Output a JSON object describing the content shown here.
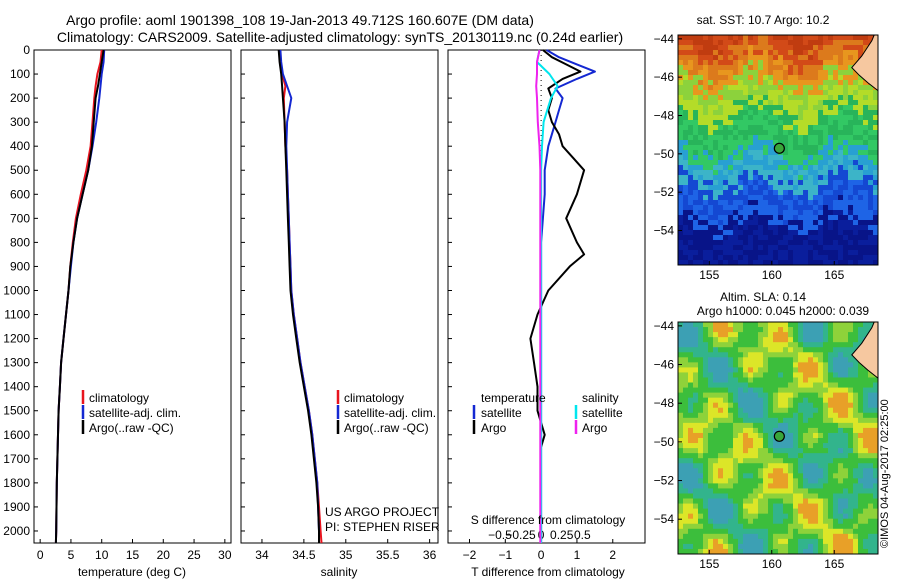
{
  "title_line1": "Argo profile: aoml 1901398_108 19-Jan-2013 49.712S 160.607E (DM data)",
  "title_line2": "Climatology: CARS2009. Satellite-adjusted climatology: synTS_20130119.nc (0.24d earlier)",
  "project_line1": "US ARGO PROJECT",
  "project_line2": "PI: STEPHEN RISER",
  "watermark": "©IMOS 04-Aug-2017 02:25:00",
  "colors": {
    "climatology": "#e8141e",
    "satellite": "#1428d2",
    "argo": "#000000",
    "sal_satellite": "#00e6ee",
    "sal_argo": "#ee22ee"
  },
  "chart_data": [
    {
      "type": "line",
      "id": "temperature",
      "xlabel": "temperature (deg C)",
      "ylabel": "",
      "xlim": [
        -1,
        31
      ],
      "ylim": [
        2050,
        0
      ],
      "xticks": [
        0,
        5,
        10,
        15,
        20,
        25,
        30
      ],
      "yticks": [
        0,
        100,
        200,
        300,
        400,
        500,
        600,
        700,
        800,
        900,
        1000,
        1100,
        1200,
        1300,
        1400,
        1500,
        1600,
        1700,
        1800,
        1900,
        2000
      ],
      "legend": [
        "climatology",
        "satellite-adj. clim.",
        "Argo(..raw -QC)"
      ],
      "series": [
        {
          "name": "climatology",
          "depth": [
            0,
            50,
            100,
            150,
            200,
            300,
            400,
            500,
            600,
            700,
            800,
            900,
            1000,
            1100,
            1200,
            1300,
            1400,
            1500,
            1600,
            1800,
            2000,
            2050
          ],
          "values": [
            10.0,
            9.8,
            9.3,
            9.0,
            8.8,
            8.5,
            8.2,
            7.5,
            6.6,
            5.8,
            5.3,
            4.9,
            4.6,
            4.2,
            3.8,
            3.4,
            3.2,
            3.0,
            2.9,
            2.7,
            2.6,
            2.55
          ]
        },
        {
          "name": "satellite-adj. clim.",
          "depth": [
            0,
            50,
            100,
            150,
            200,
            300,
            400,
            500,
            600,
            700,
            800,
            900,
            1000,
            1100,
            1200,
            1300,
            1400,
            1500,
            1600,
            1800,
            2000,
            2050
          ],
          "values": [
            10.4,
            10.3,
            10.0,
            9.8,
            9.6,
            9.1,
            8.5,
            7.8,
            6.9,
            6.0,
            5.4,
            5.0,
            4.6,
            4.2,
            3.8,
            3.4,
            3.2,
            3.0,
            2.9,
            2.7,
            2.6,
            2.55
          ]
        },
        {
          "name": "Argo(..raw -QC)",
          "depth": [
            0,
            50,
            100,
            150,
            200,
            300,
            400,
            500,
            600,
            700,
            800,
            900,
            1000,
            1100,
            1200,
            1300,
            1400,
            1500,
            1600,
            1800,
            2000,
            2050
          ],
          "values": [
            10.3,
            10.0,
            9.7,
            9.4,
            9.0,
            8.7,
            8.4,
            7.8,
            6.9,
            6.0,
            5.4,
            4.9,
            4.6,
            4.2,
            3.8,
            3.4,
            3.2,
            3.0,
            2.9,
            2.7,
            2.6,
            2.55
          ]
        }
      ]
    },
    {
      "type": "line",
      "id": "salinity",
      "xlabel": "salinity",
      "xlim": [
        33.75,
        36.1
      ],
      "ylim": [
        2050,
        0
      ],
      "xticks": [
        34,
        34.5,
        35,
        35.5,
        36
      ],
      "legend": [
        "climatology",
        "satellite-adj. clim.",
        "Argo(..raw -QC)"
      ],
      "series": [
        {
          "name": "climatology",
          "depth": [
            0,
            50,
            100,
            150,
            200,
            300,
            400,
            500,
            600,
            700,
            800,
            900,
            1000,
            1100,
            1200,
            1300,
            1400,
            1500,
            1600,
            1700,
            1800,
            1900,
            2000,
            2050
          ],
          "values": [
            34.22,
            34.22,
            34.24,
            34.28,
            34.26,
            34.27,
            34.28,
            34.3,
            34.31,
            34.32,
            34.33,
            34.34,
            34.35,
            34.38,
            34.42,
            34.46,
            34.51,
            34.56,
            34.6,
            34.63,
            34.66,
            34.68,
            34.7,
            34.71
          ]
        },
        {
          "name": "satellite-adj. clim.",
          "depth": [
            0,
            50,
            100,
            150,
            200,
            300,
            400,
            500,
            600,
            700,
            800,
            900,
            1000,
            1100,
            1200,
            1300,
            1400,
            1500,
            1600,
            1700,
            1800,
            1900,
            2000,
            2050
          ],
          "values": [
            34.22,
            34.23,
            34.25,
            34.3,
            34.35,
            34.3,
            34.29,
            34.3,
            34.31,
            34.32,
            34.33,
            34.34,
            34.35,
            34.38,
            34.42,
            34.46,
            34.51,
            34.56,
            34.6,
            34.63,
            34.66,
            34.67,
            34.68,
            34.68
          ]
        },
        {
          "name": "Argo(..raw -QC)",
          "depth": [
            0,
            50,
            100,
            150,
            200,
            300,
            400,
            500,
            600,
            700,
            800,
            900,
            1000,
            1100,
            1200,
            1300,
            1400,
            1500,
            1600,
            1700,
            1800,
            1900,
            2000,
            2050
          ],
          "values": [
            34.2,
            34.21,
            34.23,
            34.24,
            34.25,
            34.27,
            34.28,
            34.29,
            34.3,
            34.31,
            34.32,
            34.33,
            34.34,
            34.37,
            34.41,
            34.45,
            34.5,
            34.55,
            34.59,
            34.62,
            34.65,
            34.67,
            34.68,
            34.68
          ]
        }
      ]
    },
    {
      "type": "line",
      "id": "difference",
      "xlabel": "T difference from climatology",
      "xlabel_top": "S difference from climatology",
      "xlim": [
        -2.6,
        2.9
      ],
      "ylim": [
        2050,
        0
      ],
      "xticks": [
        -2,
        -1,
        0,
        1,
        2
      ],
      "xtick_labels": [
        "−2",
        "−1",
        "0",
        "1",
        "2"
      ],
      "s_ticks": [
        -0.5,
        -0.25,
        0,
        0.25,
        0.5
      ],
      "s_tick_labels": [
        "−0.5",
        "−0.25",
        "0",
        "0.25",
        "0.5"
      ],
      "legend_temperature": {
        "title": "temperature",
        "entries": [
          "satellite",
          "Argo"
        ]
      },
      "legend_salinity": {
        "title": "salinity",
        "entries": [
          "satellite",
          "Argo"
        ]
      },
      "series": [
        {
          "name": "temperature satellite",
          "depth": [
            0,
            30,
            60,
            90,
            120,
            160,
            200,
            250,
            300,
            350,
            400,
            500,
            600,
            700,
            800,
            900,
            1000,
            1100,
            1200,
            1300,
            1400,
            1500,
            1600,
            1700,
            1800,
            2000,
            2050
          ],
          "values": [
            0.15,
            0.5,
            1.0,
            1.5,
            1.0,
            0.4,
            0.6,
            0.5,
            0.4,
            0.3,
            0.2,
            0.1,
            0.1,
            0.05,
            0.0,
            0.0,
            0.0,
            0.0,
            0.0,
            0.0,
            0.0,
            0.0,
            0.0,
            0.0,
            0.0,
            0.0,
            0.0
          ]
        },
        {
          "name": "temperature Argo",
          "depth": [
            0,
            30,
            60,
            90,
            120,
            160,
            200,
            250,
            300,
            350,
            400,
            450,
            500,
            600,
            700,
            800,
            850,
            900,
            1000,
            1100,
            1200,
            1300,
            1400,
            1500,
            1550,
            1600,
            1650
          ],
          "values": [
            0.05,
            0.3,
            0.7,
            1.1,
            0.6,
            0.2,
            0.3,
            0.2,
            0.3,
            0.5,
            0.6,
            0.9,
            1.2,
            1.0,
            0.7,
            1.0,
            1.2,
            0.8,
            0.2,
            -0.1,
            -0.3,
            -0.2,
            -0.1,
            -0.1,
            0.0,
            0.1,
            0.0
          ]
        },
        {
          "name": "salinity satellite",
          "depth": [
            0,
            50,
            100,
            150,
            200,
            300,
            400,
            500,
            600,
            800,
            1000,
            1200,
            1400,
            1600,
            1800,
            2000,
            2050
          ],
          "values": [
            -0.02,
            -0.05,
            0.1,
            0.2,
            0.12,
            0.03,
            0.01,
            0.0,
            0.0,
            0.0,
            0.0,
            0.0,
            0.0,
            0.0,
            0.0,
            0.0,
            0.0
          ]
        },
        {
          "name": "salinity Argo",
          "depth": [
            0,
            50,
            100,
            150,
            200,
            300,
            400,
            500,
            600,
            800,
            1000,
            1200,
            1400,
            1600,
            1800,
            2000,
            2050
          ],
          "values": [
            -0.02,
            -0.05,
            -0.05,
            -0.06,
            -0.05,
            -0.04,
            -0.02,
            -0.01,
            -0.01,
            -0.01,
            -0.01,
            -0.01,
            -0.01,
            -0.01,
            -0.01,
            -0.01,
            -0.01
          ]
        }
      ]
    },
    {
      "type": "heatmap",
      "id": "sst_map",
      "title": "sat. SST: 10.7  Argo: 10.2",
      "xlim": [
        152.5,
        168.5
      ],
      "ylim": [
        -55.8,
        -43.8
      ],
      "xticks": [
        155,
        160,
        165
      ],
      "yticks": [
        -44,
        -46,
        -48,
        -50,
        -52,
        -54
      ],
      "ytick_labels": [
        "−44",
        "−46",
        "−48",
        "−50",
        "−52",
        "−54"
      ],
      "marker": {
        "lon": 160.607,
        "lat": -49.712
      }
    },
    {
      "type": "heatmap",
      "id": "sla_map",
      "title_line1": "Altim. SLA: 0.14",
      "title_line2": "Argo h1000: 0.045 h2000: 0.039",
      "xlim": [
        152.5,
        168.5
      ],
      "ylim": [
        -55.8,
        -43.8
      ],
      "xticks": [
        155,
        160,
        165
      ],
      "yticks": [
        -44,
        -46,
        -48,
        -50,
        -52,
        -54
      ],
      "ytick_labels": [
        "−44",
        "−46",
        "−48",
        "−50",
        "−52",
        "−54"
      ],
      "marker": {
        "lon": 160.607,
        "lat": -49.712
      }
    }
  ]
}
